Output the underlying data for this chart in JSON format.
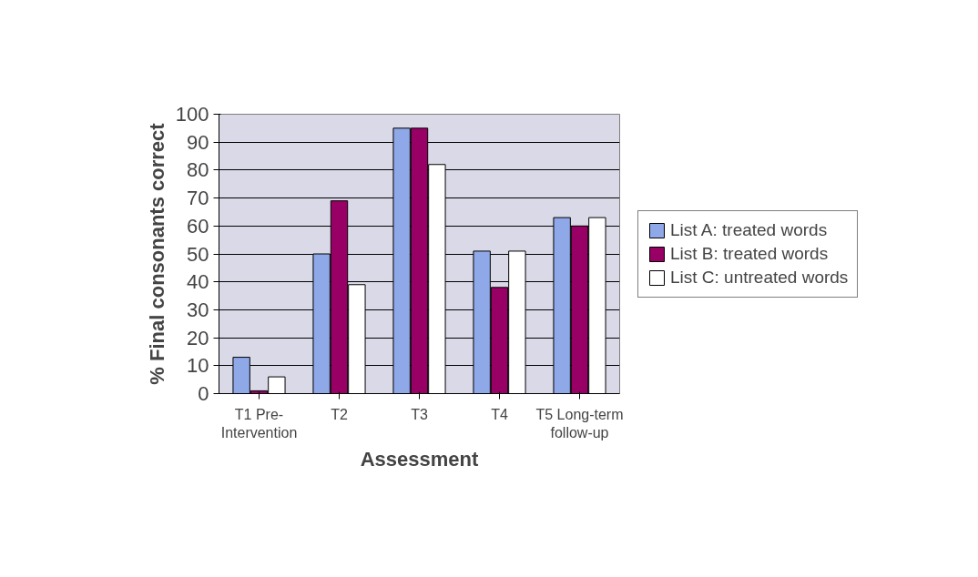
{
  "chart_data": {
    "type": "bar",
    "xlabel": "Assessment",
    "ylabel": "% Final consonants correct",
    "categories": [
      "T1 Pre-Intervention",
      "T2",
      "T3",
      "T4",
      "T5 Long-term follow-up"
    ],
    "series": [
      {
        "name": "List A: treated words",
        "color": "#8fa8e8",
        "values": [
          13,
          50,
          95,
          51,
          63
        ]
      },
      {
        "name": "List B: treated words",
        "color": "#990066",
        "values": [
          1,
          69,
          95,
          38,
          60
        ]
      },
      {
        "name": "List C: untreated words",
        "color": "#ffffff",
        "values": [
          6,
          39,
          82,
          51,
          63
        ]
      }
    ],
    "ylim": [
      0,
      100
    ],
    "yticks": [
      0,
      10,
      20,
      30,
      40,
      50,
      60,
      70,
      80,
      90,
      100
    ],
    "grid": "y",
    "legend": "right"
  }
}
